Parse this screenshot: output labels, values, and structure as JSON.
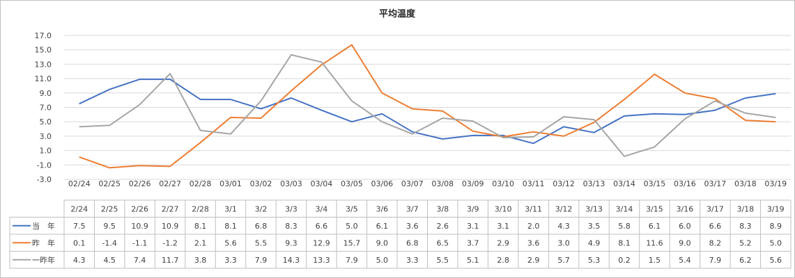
{
  "chart_data": {
    "type": "line",
    "title": "平均温度",
    "categories": [
      "02/24",
      "02/25",
      "02/26",
      "02/27",
      "02/28",
      "03/01",
      "03/02",
      "03/03",
      "03/04",
      "03/05",
      "03/06",
      "03/07",
      "03/08",
      "03/09",
      "03/10",
      "03/11",
      "03/12",
      "03/13",
      "03/14",
      "03/15",
      "03/16",
      "03/17",
      "03/18",
      "03/19"
    ],
    "table_headers": [
      "2/24",
      "2/25",
      "2/26",
      "2/27",
      "2/28",
      "3/1",
      "3/2",
      "3/3",
      "3/4",
      "3/5",
      "3/6",
      "3/7",
      "3/8",
      "3/9",
      "3/10",
      "3/11",
      "3/12",
      "3/13",
      "3/14",
      "3/15",
      "3/16",
      "3/17",
      "3/18",
      "3/19"
    ],
    "ylim": [
      -3.0,
      17.0
    ],
    "yticks": [
      "-3.0",
      "-1.0",
      "1.0",
      "3.0",
      "5.0",
      "7.0",
      "9.0",
      "11.0",
      "13.0",
      "15.0",
      "17.0"
    ],
    "grid": true,
    "legend": "table",
    "series": [
      {
        "name": "当　年",
        "color": "#4472c4",
        "values": [
          7.5,
          9.5,
          10.9,
          10.9,
          8.1,
          8.1,
          6.8,
          8.3,
          6.6,
          5.0,
          6.1,
          3.6,
          2.6,
          3.1,
          3.1,
          2.0,
          4.3,
          3.5,
          5.8,
          6.1,
          6.0,
          6.6,
          8.3,
          8.9
        ]
      },
      {
        "name": "昨　年",
        "color": "#ed7d31",
        "values": [
          0.1,
          -1.4,
          -1.1,
          -1.2,
          2.1,
          5.6,
          5.5,
          9.3,
          12.9,
          15.7,
          9.0,
          6.8,
          6.5,
          3.7,
          2.9,
          3.6,
          3.0,
          4.9,
          8.1,
          11.6,
          9.0,
          8.2,
          5.2,
          5.0
        ]
      },
      {
        "name": "一昨年",
        "color": "#a5a5a5",
        "values": [
          4.3,
          4.5,
          7.4,
          11.7,
          3.8,
          3.3,
          7.9,
          14.3,
          13.3,
          7.9,
          5.0,
          3.3,
          5.5,
          5.1,
          2.8,
          2.9,
          5.7,
          5.3,
          0.2,
          1.5,
          5.4,
          7.9,
          6.2,
          5.6
        ]
      }
    ]
  }
}
